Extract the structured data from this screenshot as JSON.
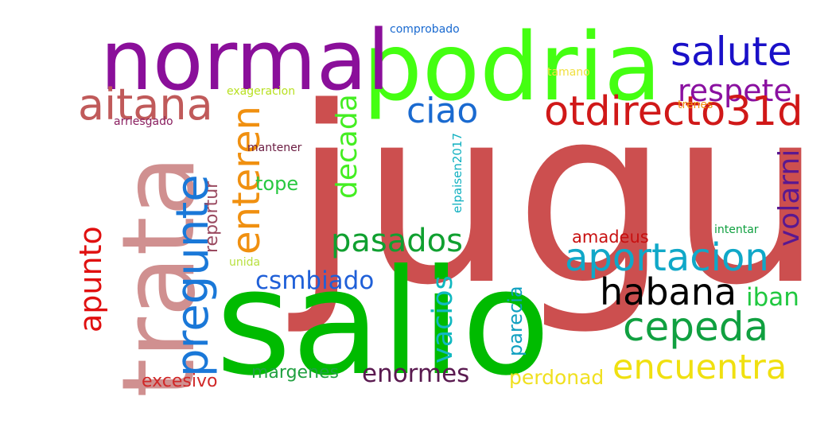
{
  "cloud": {
    "words": [
      {
        "text": "jugue",
        "color": "#cc4f4f"
      },
      {
        "text": "salio",
        "color": "#00bb00"
      },
      {
        "text": "podria",
        "color": "#44ff11"
      },
      {
        "text": "normal",
        "color": "#8a0f9a"
      },
      {
        "text": "trata",
        "color": "#d09090"
      },
      {
        "text": "aitana",
        "color": "#c05a5a"
      },
      {
        "text": "salute",
        "color": "#1a10c8"
      },
      {
        "text": "respete",
        "color": "#8a10a0"
      },
      {
        "text": "otdirecto31d",
        "color": "#d01818"
      },
      {
        "text": "ciao",
        "color": "#1a6ad0"
      },
      {
        "text": "pregunte",
        "color": "#1a78d8"
      },
      {
        "text": "enteren",
        "color": "#f09010"
      },
      {
        "text": "decada",
        "color": "#44ee22"
      },
      {
        "text": "volarni",
        "color": "#5a1890"
      },
      {
        "text": "aportacion",
        "color": "#10a8c8"
      },
      {
        "text": "pasados",
        "color": "#10a030"
      },
      {
        "text": "habana",
        "color": "#000000"
      },
      {
        "text": "cepeda",
        "color": "#10a040"
      },
      {
        "text": "encuentra",
        "color": "#f0e010"
      },
      {
        "text": "iban",
        "color": "#20c840"
      },
      {
        "text": "csmbiado",
        "color": "#2060d8"
      },
      {
        "text": "vacios",
        "color": "#10b8c0"
      },
      {
        "text": "apunto",
        "color": "#e01010"
      },
      {
        "text": "enormes",
        "color": "#5a1a50"
      },
      {
        "text": "margenes",
        "color": "#20a040"
      },
      {
        "text": "excesivo",
        "color": "#d02828"
      },
      {
        "text": "perdonad",
        "color": "#f0e020"
      },
      {
        "text": "parecia",
        "color": "#10a0c0"
      },
      {
        "text": "tope",
        "color": "#28c840"
      },
      {
        "text": "reportur",
        "color": "#9a4a60"
      },
      {
        "text": "amadeus",
        "color": "#c81010"
      },
      {
        "text": "elpaisen2017",
        "color": "#10b0c0"
      },
      {
        "text": "comprobado",
        "color": "#1a6ad0"
      },
      {
        "text": "tamano",
        "color": "#f0e040"
      },
      {
        "text": "trenes",
        "color": "#f09010"
      },
      {
        "text": "exageracion",
        "color": "#b8e020"
      },
      {
        "text": "arriesgado",
        "color": "#8a2060"
      },
      {
        "text": "mantener",
        "color": "#6a1a40"
      },
      {
        "text": "intentar",
        "color": "#10a040"
      },
      {
        "text": "unida",
        "color": "#b8e040"
      }
    ]
  }
}
